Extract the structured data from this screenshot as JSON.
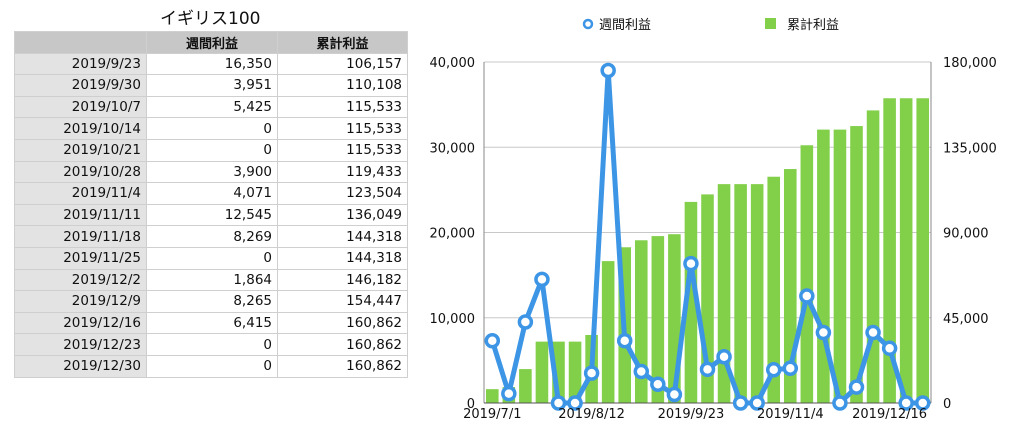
{
  "table": {
    "title": "イギリス100",
    "headers": [
      "",
      "週間利益",
      "累計利益"
    ],
    "rows": [
      [
        "2019/9/23",
        "16,350",
        "106,157"
      ],
      [
        "2019/9/30",
        "3,951",
        "110,108"
      ],
      [
        "2019/10/7",
        "5,425",
        "115,533"
      ],
      [
        "2019/10/14",
        "0",
        "115,533"
      ],
      [
        "2019/10/21",
        "0",
        "115,533"
      ],
      [
        "2019/10/28",
        "3,900",
        "119,433"
      ],
      [
        "2019/11/4",
        "4,071",
        "123,504"
      ],
      [
        "2019/11/11",
        "12,545",
        "136,049"
      ],
      [
        "2019/11/18",
        "8,269",
        "144,318"
      ],
      [
        "2019/11/25",
        "0",
        "144,318"
      ],
      [
        "2019/12/2",
        "1,864",
        "146,182"
      ],
      [
        "2019/12/9",
        "8,265",
        "154,447"
      ],
      [
        "2019/12/16",
        "6,415",
        "160,862"
      ],
      [
        "2019/12/23",
        "0",
        "160,862"
      ],
      [
        "2019/12/30",
        "0",
        "160,862"
      ]
    ]
  },
  "chart_data": {
    "type": "bar",
    "legend": {
      "position": "top"
    },
    "grid": true,
    "x_tick_labels": [
      "2019/7/1",
      "2019/8/12",
      "2019/9/23",
      "2019/11/4",
      "2019/12/16"
    ],
    "left_axis": {
      "ticks": [
        "0",
        "10,000",
        "20,000",
        "30,000",
        "40,000"
      ],
      "ylim": [
        0,
        40000
      ]
    },
    "right_axis": {
      "ticks": [
        "0",
        "45,000",
        "90,000",
        "135,000",
        "180,000"
      ],
      "ylim": [
        0,
        180000
      ]
    },
    "series": [
      {
        "name": "週間利益",
        "kind": "line",
        "axis": "left",
        "color": "#3d95e6",
        "values": [
          7300,
          1100,
          9500,
          14500,
          0,
          0,
          3500,
          39000,
          7300,
          3700,
          2200,
          1000,
          16350,
          3951,
          5425,
          0,
          0,
          3900,
          4071,
          12545,
          8269,
          0,
          1864,
          8265,
          6415,
          0,
          0
        ]
      },
      {
        "name": "累計利益",
        "kind": "bar",
        "axis": "right",
        "color": "#82cf4a",
        "values": [
          7300,
          8400,
          17900,
          32400,
          32400,
          32400,
          35900,
          74900,
          82200,
          85900,
          88100,
          89100,
          106157,
          110108,
          115533,
          115533,
          115533,
          119433,
          123504,
          136049,
          144318,
          144318,
          146182,
          154447,
          160862,
          160862,
          160862
        ]
      }
    ]
  }
}
